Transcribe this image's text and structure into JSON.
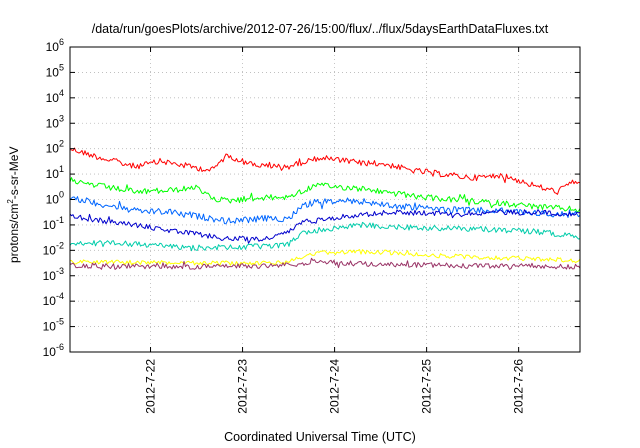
{
  "chart_data": {
    "type": "line",
    "title": "/data/run/goesPlots/archive/2012-07-26/15:00/flux/../flux/5daysEarthDataFluxes.txt",
    "xlabel": "Coordinated Universal Time (UTC)",
    "ylabel": {
      "pre": "protons/cm",
      "sup": "2",
      "post": "-s-sr-MeV"
    },
    "yscale": "log",
    "ylim_exponent": [
      -6,
      6
    ],
    "yticks": [
      {
        "base": "10",
        "exp": "6"
      },
      {
        "base": "10",
        "exp": "5"
      },
      {
        "base": "10",
        "exp": "4"
      },
      {
        "base": "10",
        "exp": "3"
      },
      {
        "base": "10",
        "exp": "2"
      },
      {
        "base": "10",
        "exp": "1"
      },
      {
        "base": "10",
        "exp": "0"
      },
      {
        "base": "10",
        "exp": "-1"
      },
      {
        "base": "10",
        "exp": "-2"
      },
      {
        "base": "10",
        "exp": "-3"
      },
      {
        "base": "10",
        "exp": "-4"
      },
      {
        "base": "10",
        "exp": "-5"
      },
      {
        "base": "10",
        "exp": "-6"
      }
    ],
    "xlim": [
      "2012-07-21 03:00",
      "2012-07-26 16:00"
    ],
    "xticks": [
      {
        "label": "2012-7-22",
        "t": "2012-07-22 00:00"
      },
      {
        "label": "2012-7-23",
        "t": "2012-07-23 00:00"
      },
      {
        "label": "2012-7-24",
        "t": "2012-07-24 00:00"
      },
      {
        "label": "2012-7-25",
        "t": "2012-07-25 00:00"
      },
      {
        "label": "2012-7-26",
        "t": "2012-07-26 00:00"
      }
    ],
    "grid": true,
    "series": [
      {
        "color": "#ff0000",
        "points": [
          [
            "2012-07-21 03:00",
            2.0
          ],
          [
            "2012-07-21 12:00",
            1.6
          ],
          [
            "2012-07-21 20:00",
            1.3
          ],
          [
            "2012-07-22 03:00",
            1.5
          ],
          [
            "2012-07-22 12:00",
            1.25
          ],
          [
            "2012-07-22 16:00",
            1.15
          ],
          [
            "2012-07-22 20:00",
            1.75
          ],
          [
            "2012-07-23 01:00",
            1.45
          ],
          [
            "2012-07-23 06:00",
            1.3
          ],
          [
            "2012-07-23 12:00",
            1.3
          ],
          [
            "2012-07-23 20:00",
            1.65
          ],
          [
            "2012-07-24 06:00",
            1.45
          ],
          [
            "2012-07-24 13:00",
            1.4
          ],
          [
            "2012-07-24 20:00",
            1.15
          ],
          [
            "2012-07-25 04:00",
            1.0
          ],
          [
            "2012-07-25 12:00",
            0.85
          ],
          [
            "2012-07-25 20:00",
            0.95
          ],
          [
            "2012-07-26 04:00",
            0.55
          ],
          [
            "2012-07-26 10:00",
            0.3
          ],
          [
            "2012-07-26 13:00",
            0.6
          ],
          [
            "2012-07-26 16:00",
            0.75
          ]
        ]
      },
      {
        "color": "#00ff00",
        "points": [
          [
            "2012-07-21 03:00",
            0.75
          ],
          [
            "2012-07-21 10:00",
            0.55
          ],
          [
            "2012-07-21 20:00",
            0.3
          ],
          [
            "2012-07-22 04:00",
            0.35
          ],
          [
            "2012-07-22 12:00",
            0.45
          ],
          [
            "2012-07-22 16:00",
            0.05
          ],
          [
            "2012-07-22 20:00",
            -0.05
          ],
          [
            "2012-07-23 02:00",
            0.05
          ],
          [
            "2012-07-23 12:00",
            0.1
          ],
          [
            "2012-07-23 15:00",
            0.3
          ],
          [
            "2012-07-23 19:00",
            0.55
          ],
          [
            "2012-07-24 06:00",
            0.45
          ],
          [
            "2012-07-24 15:00",
            0.25
          ],
          [
            "2012-07-24 22:00",
            0.1
          ],
          [
            "2012-07-25 10:00",
            -0.05
          ],
          [
            "2012-07-25 20:00",
            -0.15
          ],
          [
            "2012-07-26 06:00",
            -0.3
          ],
          [
            "2012-07-26 16:00",
            -0.4
          ]
        ]
      },
      {
        "color": "#0066ff",
        "points": [
          [
            "2012-07-21 03:00",
            0.05
          ],
          [
            "2012-07-21 12:00",
            -0.2
          ],
          [
            "2012-07-21 20:00",
            -0.45
          ],
          [
            "2012-07-22 06:00",
            -0.5
          ],
          [
            "2012-07-22 14:00",
            -0.7
          ],
          [
            "2012-07-22 20:00",
            -0.85
          ],
          [
            "2012-07-23 06:00",
            -0.75
          ],
          [
            "2012-07-23 12:00",
            -0.75
          ],
          [
            "2012-07-23 15:00",
            -0.3
          ],
          [
            "2012-07-23 19:00",
            -0.1
          ],
          [
            "2012-07-24 06:00",
            -0.05
          ],
          [
            "2012-07-24 15:00",
            -0.25
          ],
          [
            "2012-07-25 06:00",
            -0.4
          ],
          [
            "2012-07-25 20:00",
            -0.45
          ],
          [
            "2012-07-26 06:00",
            -0.55
          ],
          [
            "2012-07-26 16:00",
            -0.6
          ]
        ]
      },
      {
        "color": "#0000cc",
        "points": [
          [
            "2012-07-21 03:00",
            -0.65
          ],
          [
            "2012-07-21 12:00",
            -0.85
          ],
          [
            "2012-07-21 20:00",
            -1.0
          ],
          [
            "2012-07-22 06:00",
            -1.25
          ],
          [
            "2012-07-22 14:00",
            -1.4
          ],
          [
            "2012-07-22 20:00",
            -1.55
          ],
          [
            "2012-07-23 06:00",
            -1.55
          ],
          [
            "2012-07-23 12:00",
            -1.3
          ],
          [
            "2012-07-23 15:00",
            -0.9
          ],
          [
            "2012-07-23 19:00",
            -0.8
          ],
          [
            "2012-07-24 03:00",
            -0.65
          ],
          [
            "2012-07-24 15:00",
            -0.5
          ],
          [
            "2012-07-25 06:00",
            -0.55
          ],
          [
            "2012-07-25 20:00",
            -0.5
          ],
          [
            "2012-07-26 06:00",
            -0.5
          ],
          [
            "2012-07-26 16:00",
            -0.6
          ]
        ]
      },
      {
        "color": "#00ccaa",
        "points": [
          [
            "2012-07-21 03:00",
            -1.7
          ],
          [
            "2012-07-21 20:00",
            -1.75
          ],
          [
            "2012-07-22 12:00",
            -1.9
          ],
          [
            "2012-07-23 06:00",
            -1.85
          ],
          [
            "2012-07-23 12:00",
            -1.75
          ],
          [
            "2012-07-23 15:00",
            -1.35
          ],
          [
            "2012-07-23 20:00",
            -1.2
          ],
          [
            "2012-07-24 06:00",
            -1.0
          ],
          [
            "2012-07-24 20:00",
            -1.1
          ],
          [
            "2012-07-25 12:00",
            -1.15
          ],
          [
            "2012-07-26 04:00",
            -1.25
          ],
          [
            "2012-07-26 16:00",
            -1.45
          ]
        ]
      },
      {
        "color": "#ffff00",
        "points": [
          [
            "2012-07-21 03:00",
            -2.45
          ],
          [
            "2012-07-22 12:00",
            -2.5
          ],
          [
            "2012-07-23 10:00",
            -2.5
          ],
          [
            "2012-07-23 15:00",
            -2.3
          ],
          [
            "2012-07-23 20:00",
            -2.1
          ],
          [
            "2012-07-24 10:00",
            -2.05
          ],
          [
            "2012-07-25 00:00",
            -2.2
          ],
          [
            "2012-07-25 20:00",
            -2.3
          ],
          [
            "2012-07-26 16:00",
            -2.4
          ]
        ]
      },
      {
        "color": "#993366",
        "points": [
          [
            "2012-07-21 03:00",
            -2.6
          ],
          [
            "2012-07-22 12:00",
            -2.65
          ],
          [
            "2012-07-23 10:00",
            -2.6
          ],
          [
            "2012-07-23 20:00",
            -2.45
          ],
          [
            "2012-07-24 10:00",
            -2.55
          ],
          [
            "2012-07-25 10:00",
            -2.6
          ],
          [
            "2012-07-26 16:00",
            -2.65
          ]
        ]
      }
    ]
  }
}
